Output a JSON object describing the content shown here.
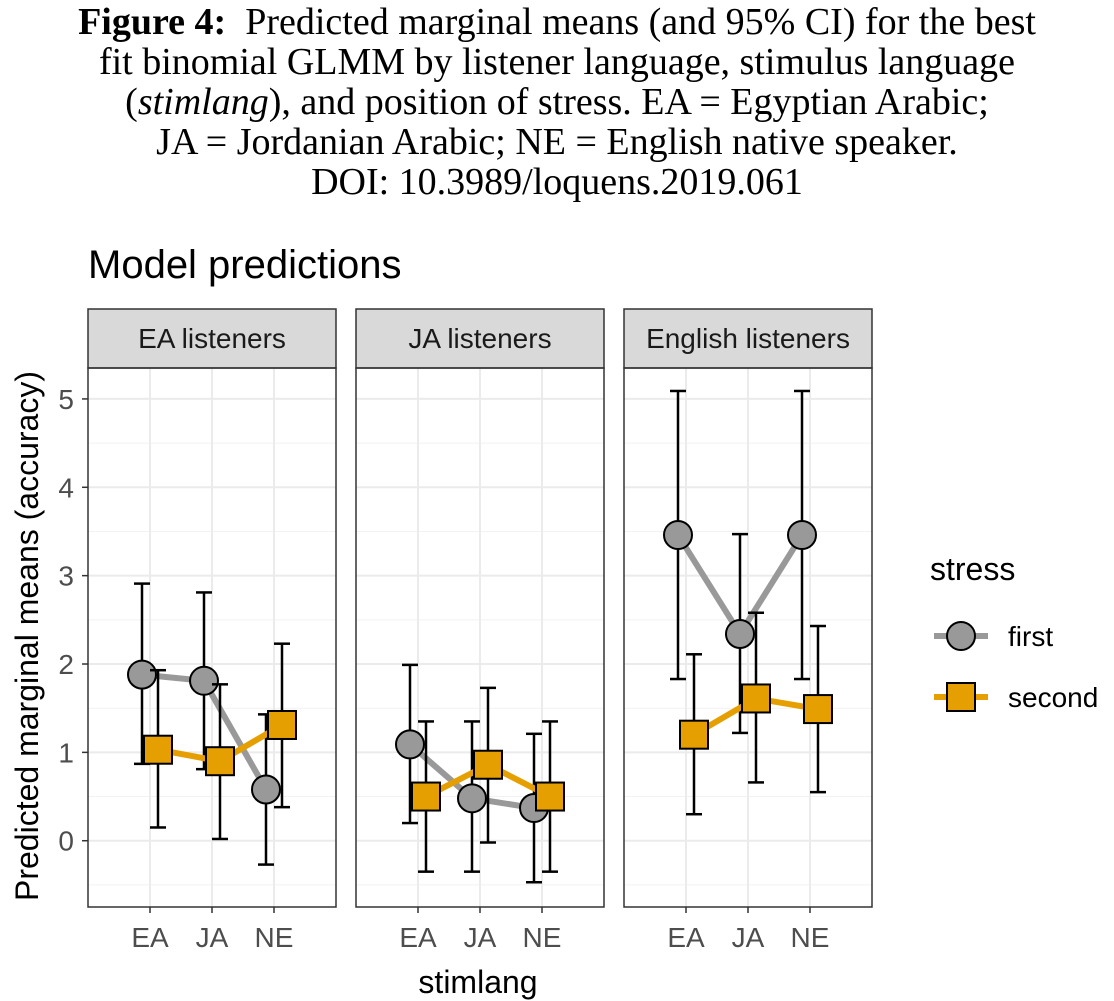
{
  "caption": {
    "label": "Figure 4:",
    "line1_rest": "Predicted marginal means (and 95% CI) for the best",
    "line2": "fit binomial GLMM by listener language, stimulus language",
    "line3_pre": "(",
    "line3_italic": "stimlang",
    "line3_post": "), and position of stress. EA = Egyptian Arabic;",
    "line4": "JA = Jordanian Arabic; NE = English native speaker.",
    "line5": "DOI: 10.3989/loquens.2019.061"
  },
  "chart_data": {
    "type": "line",
    "title": "Model predictions",
    "xlabel": "stimlang",
    "ylabel": "Predicted marginal means (accuracy)",
    "ylim": [
      -0.75,
      5.35
    ],
    "yticks": [
      0,
      1,
      2,
      3,
      4,
      5
    ],
    "categories": [
      "EA",
      "JA",
      "NE"
    ],
    "grid": true,
    "legend_position": "right",
    "legend_title": "stress",
    "colors": {
      "first": "#999999",
      "second": "#E69F00",
      "errorbar": "#000000",
      "grid": "#EBEBEB",
      "strip": "#D9D9D9",
      "panel_border": "#333333"
    },
    "panels": [
      {
        "label": "EA listeners",
        "series": [
          {
            "name": "first",
            "values": [
              1.88,
              1.81,
              0.58
            ],
            "lower": [
              0.87,
              0.81,
              -0.27
            ],
            "upper": [
              2.91,
              2.81,
              1.43
            ]
          },
          {
            "name": "second",
            "values": [
              1.03,
              0.9,
              1.31
            ],
            "lower": [
              0.15,
              0.02,
              0.38
            ],
            "upper": [
              1.93,
              1.77,
              2.23
            ]
          }
        ]
      },
      {
        "label": "JA listeners",
        "series": [
          {
            "name": "first",
            "values": [
              1.09,
              0.48,
              0.37
            ],
            "lower": [
              0.2,
              -0.35,
              -0.47
            ],
            "upper": [
              1.99,
              1.35,
              1.21
            ]
          },
          {
            "name": "second",
            "values": [
              0.5,
              0.86,
              0.5
            ],
            "lower": [
              -0.35,
              -0.02,
              -0.35
            ],
            "upper": [
              1.35,
              1.73,
              1.35
            ]
          }
        ]
      },
      {
        "label": "English listeners",
        "series": [
          {
            "name": "first",
            "values": [
              3.46,
              2.34,
              3.46
            ],
            "lower": [
              1.83,
              1.22,
              1.83
            ],
            "upper": [
              5.09,
              3.47,
              5.09
            ]
          },
          {
            "name": "second",
            "values": [
              1.2,
              1.61,
              1.49
            ],
            "lower": [
              0.3,
              0.66,
              0.55
            ],
            "upper": [
              2.11,
              2.58,
              2.43
            ]
          }
        ]
      }
    ]
  }
}
